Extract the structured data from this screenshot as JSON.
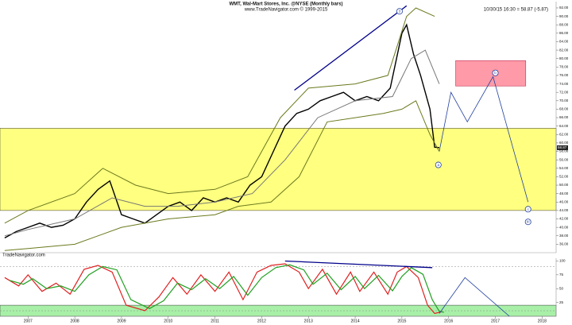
{
  "chart_data": [
    {
      "type": "line",
      "title": "WMT, Wal-Mart Stores, Inc. @NYSE (Monthly bars)",
      "subtitle": "www.TradeNavigator.com © 1999-2015",
      "date_text": "10/30/15 16:30 = 58.87 (-5.87)",
      "watermark": "TradeNavigator.com",
      "xlim": [
        2006.4,
        2018.3
      ],
      "ylim": [
        34,
        93.5
      ],
      "yticks": [
        {
          "value": 36,
          "label": "36.00"
        },
        {
          "value": 38,
          "label": "38.00"
        },
        {
          "value": 40,
          "label": "40.00"
        },
        {
          "value": 42,
          "label": "42.00"
        },
        {
          "value": 44,
          "label": "44.00"
        },
        {
          "value": 46,
          "label": "46.00"
        },
        {
          "value": 48,
          "label": "48.00"
        },
        {
          "value": 50,
          "label": "50.00"
        },
        {
          "value": 52,
          "label": "52.00"
        },
        {
          "value": 54,
          "label": "54.00"
        },
        {
          "value": 56,
          "label": "56.00"
        },
        {
          "value": 58,
          "label": "58.00"
        },
        {
          "value": 60,
          "label": "60.00"
        },
        {
          "value": 62,
          "label": "62.00"
        },
        {
          "value": 64,
          "label": "64.00"
        },
        {
          "value": 66,
          "label": "66.00"
        },
        {
          "value": 68,
          "label": "68.00"
        },
        {
          "value": 70,
          "label": "70.00"
        },
        {
          "value": 72,
          "label": "72.00"
        },
        {
          "value": 74,
          "label": "74.00"
        },
        {
          "value": 76,
          "label": "76.00"
        },
        {
          "value": 78,
          "label": "78.00"
        },
        {
          "value": 80,
          "label": "80.00"
        },
        {
          "value": 82,
          "label": "82.00"
        },
        {
          "value": 84,
          "label": "84.00"
        },
        {
          "value": 86,
          "label": "86.00"
        },
        {
          "value": 88,
          "label": "88.00"
        },
        {
          "value": 90,
          "label": "90.00"
        },
        {
          "value": 92,
          "label": "92.00"
        }
      ],
      "last_price": {
        "value": 58.87,
        "label": "58.87"
      },
      "series": [
        {
          "color": "#000000",
          "width": 1.4,
          "x": [
            2006.5,
            2006.75,
            2007.0,
            2007.25,
            2007.5,
            2007.75,
            2008.0,
            2008.25,
            2008.5,
            2008.75,
            2009.0,
            2009.25,
            2009.5,
            2009.75,
            2010.0,
            2010.25,
            2010.5,
            2010.75,
            2011.0,
            2011.25,
            2011.5,
            2011.75,
            2012.0,
            2012.25,
            2012.5,
            2012.75,
            2013.0,
            2013.25,
            2013.5,
            2013.75,
            2014.0,
            2014.25,
            2014.5,
            2014.75,
            2015.0,
            2015.1,
            2015.25,
            2015.4,
            2015.5,
            2015.6,
            2015.7,
            2015.8
          ],
          "values": [
            37.5,
            39,
            40,
            41,
            40,
            40.5,
            42,
            46,
            49,
            51,
            43,
            42,
            41,
            43,
            45,
            46,
            44,
            47,
            46,
            47,
            46,
            50,
            52,
            58,
            64,
            67,
            68,
            70,
            71,
            72,
            70,
            71,
            70,
            73,
            86,
            88,
            81,
            76,
            72,
            68,
            59,
            58.9
          ]
        },
        {
          "color": "#6b7a1e",
          "width": 1,
          "x": [
            2006.5,
            2007.0,
            2008.0,
            2008.6,
            2009.3,
            2010.0,
            2011.0,
            2011.7,
            2012.4,
            2013.0,
            2014.0,
            2014.7,
            2015.1,
            2015.3,
            2015.7
          ],
          "values": [
            41,
            44,
            48,
            54,
            50,
            48,
            49,
            52,
            66,
            73,
            74,
            76,
            90,
            92,
            90
          ]
        },
        {
          "color": "#6b7a1e",
          "width": 1,
          "x": [
            2006.5,
            2007.0,
            2008.0,
            2009.0,
            2010.0,
            2011.0,
            2011.5,
            2012.2,
            2012.8,
            2013.4,
            2014.0,
            2014.6,
            2015.0,
            2015.3,
            2015.6,
            2015.8
          ],
          "values": [
            34.5,
            35,
            36,
            40,
            42,
            43,
            45,
            46,
            52,
            65,
            66,
            67,
            68,
            70,
            62,
            58
          ]
        },
        {
          "color": "#777777",
          "width": 1,
          "x": [
            2006.5,
            2007.0,
            2008.0,
            2008.8,
            2009.5,
            2010.2,
            2011.0,
            2011.8,
            2012.5,
            2013.2,
            2014.0,
            2014.8,
            2015.2,
            2015.5,
            2015.8
          ],
          "values": [
            38,
            39.5,
            42,
            47,
            45,
            45,
            46,
            48,
            56,
            66,
            70,
            71,
            80,
            82,
            74
          ]
        }
      ],
      "zones": [
        {
          "ylim": [
            44,
            63.5
          ],
          "color": "#ffff80"
        }
      ],
      "box": {
        "x": [
          2016.15,
          2017.65
        ],
        "y": [
          73.5,
          79.5
        ],
        "color": "#ff9aa8"
      },
      "trendline": {
        "x": [
          2012.7,
          2015.1
        ],
        "y": [
          72.5,
          92.5
        ],
        "color": "#00008b"
      },
      "projection": {
        "x": [
          2015.8,
          2016.05,
          2016.4,
          2016.95,
          2017.7
        ],
        "y": [
          58,
          72,
          65,
          75.7,
          46
        ],
        "color": "#1f3f9f"
      },
      "annotations": [
        {
          "text": "3",
          "x": 2014.95,
          "y": 91.2
        },
        {
          "text": "a",
          "x": 2015.78,
          "y": 54.8
        },
        {
          "text": "b",
          "x": 2017.0,
          "y": 76.6
        },
        {
          "text": "c",
          "x": 2017.7,
          "y": 44.3
        },
        {
          "text": "III",
          "x": 2017.7,
          "y": 41.3
        }
      ]
    },
    {
      "type": "line",
      "xlim": [
        2006.4,
        2018.3
      ],
      "ylim": [
        0,
        105
      ],
      "yticks": [
        25,
        50,
        75,
        100
      ],
      "xticks": [
        2007,
        2008,
        2009,
        2010,
        2011,
        2012,
        2013,
        2014,
        2015,
        2016,
        2017,
        2018
      ],
      "hlines": [
        90,
        10
      ],
      "zones": [
        {
          "ylim": [
            0,
            20
          ],
          "color": "#a8f0a8"
        }
      ],
      "series": [
        {
          "color": "#e02020",
          "width": 1.2,
          "x": [
            2006.5,
            2006.8,
            2007.0,
            2007.3,
            2007.6,
            2007.9,
            2008.2,
            2008.5,
            2008.8,
            2009.1,
            2009.5,
            2009.8,
            2010.1,
            2010.4,
            2010.7,
            2011.0,
            2011.3,
            2011.6,
            2011.9,
            2012.2,
            2012.5,
            2012.8,
            2013.0,
            2013.3,
            2013.6,
            2013.9,
            2014.1,
            2014.4,
            2014.7,
            2014.9,
            2015.1,
            2015.35,
            2015.55,
            2015.7,
            2015.85
          ],
          "values": [
            70,
            55,
            75,
            45,
            60,
            40,
            85,
            92,
            80,
            20,
            10,
            35,
            70,
            40,
            75,
            45,
            80,
            30,
            80,
            92,
            95,
            80,
            50,
            85,
            40,
            80,
            45,
            80,
            40,
            80,
            90,
            70,
            20,
            5,
            8
          ]
        },
        {
          "color": "#20a020",
          "width": 1.2,
          "x": [
            2006.6,
            2006.9,
            2007.1,
            2007.4,
            2007.7,
            2008.0,
            2008.3,
            2008.6,
            2008.9,
            2009.2,
            2009.6,
            2009.9,
            2010.2,
            2010.5,
            2010.8,
            2011.1,
            2011.4,
            2011.7,
            2012.0,
            2012.3,
            2012.6,
            2012.9,
            2013.1,
            2013.4,
            2013.7,
            2014.0,
            2014.2,
            2014.5,
            2014.8,
            2015.0,
            2015.2,
            2015.45,
            2015.65,
            2015.8,
            2015.9
          ],
          "values": [
            65,
            58,
            68,
            50,
            55,
            45,
            75,
            90,
            84,
            30,
            14,
            28,
            60,
            48,
            68,
            50,
            72,
            38,
            70,
            88,
            93,
            84,
            58,
            78,
            48,
            72,
            50,
            74,
            46,
            72,
            88,
            76,
            30,
            9,
            7
          ]
        }
      ],
      "trendline": {
        "x": [
          2012.5,
          2015.65
        ],
        "y": [
          100,
          88
        ],
        "color": "#00008b"
      },
      "projection": {
        "x": [
          2015.8,
          2016.35,
          2017.3
        ],
        "y": [
          5,
          70,
          0
        ],
        "color": "#1f3f9f"
      }
    }
  ]
}
